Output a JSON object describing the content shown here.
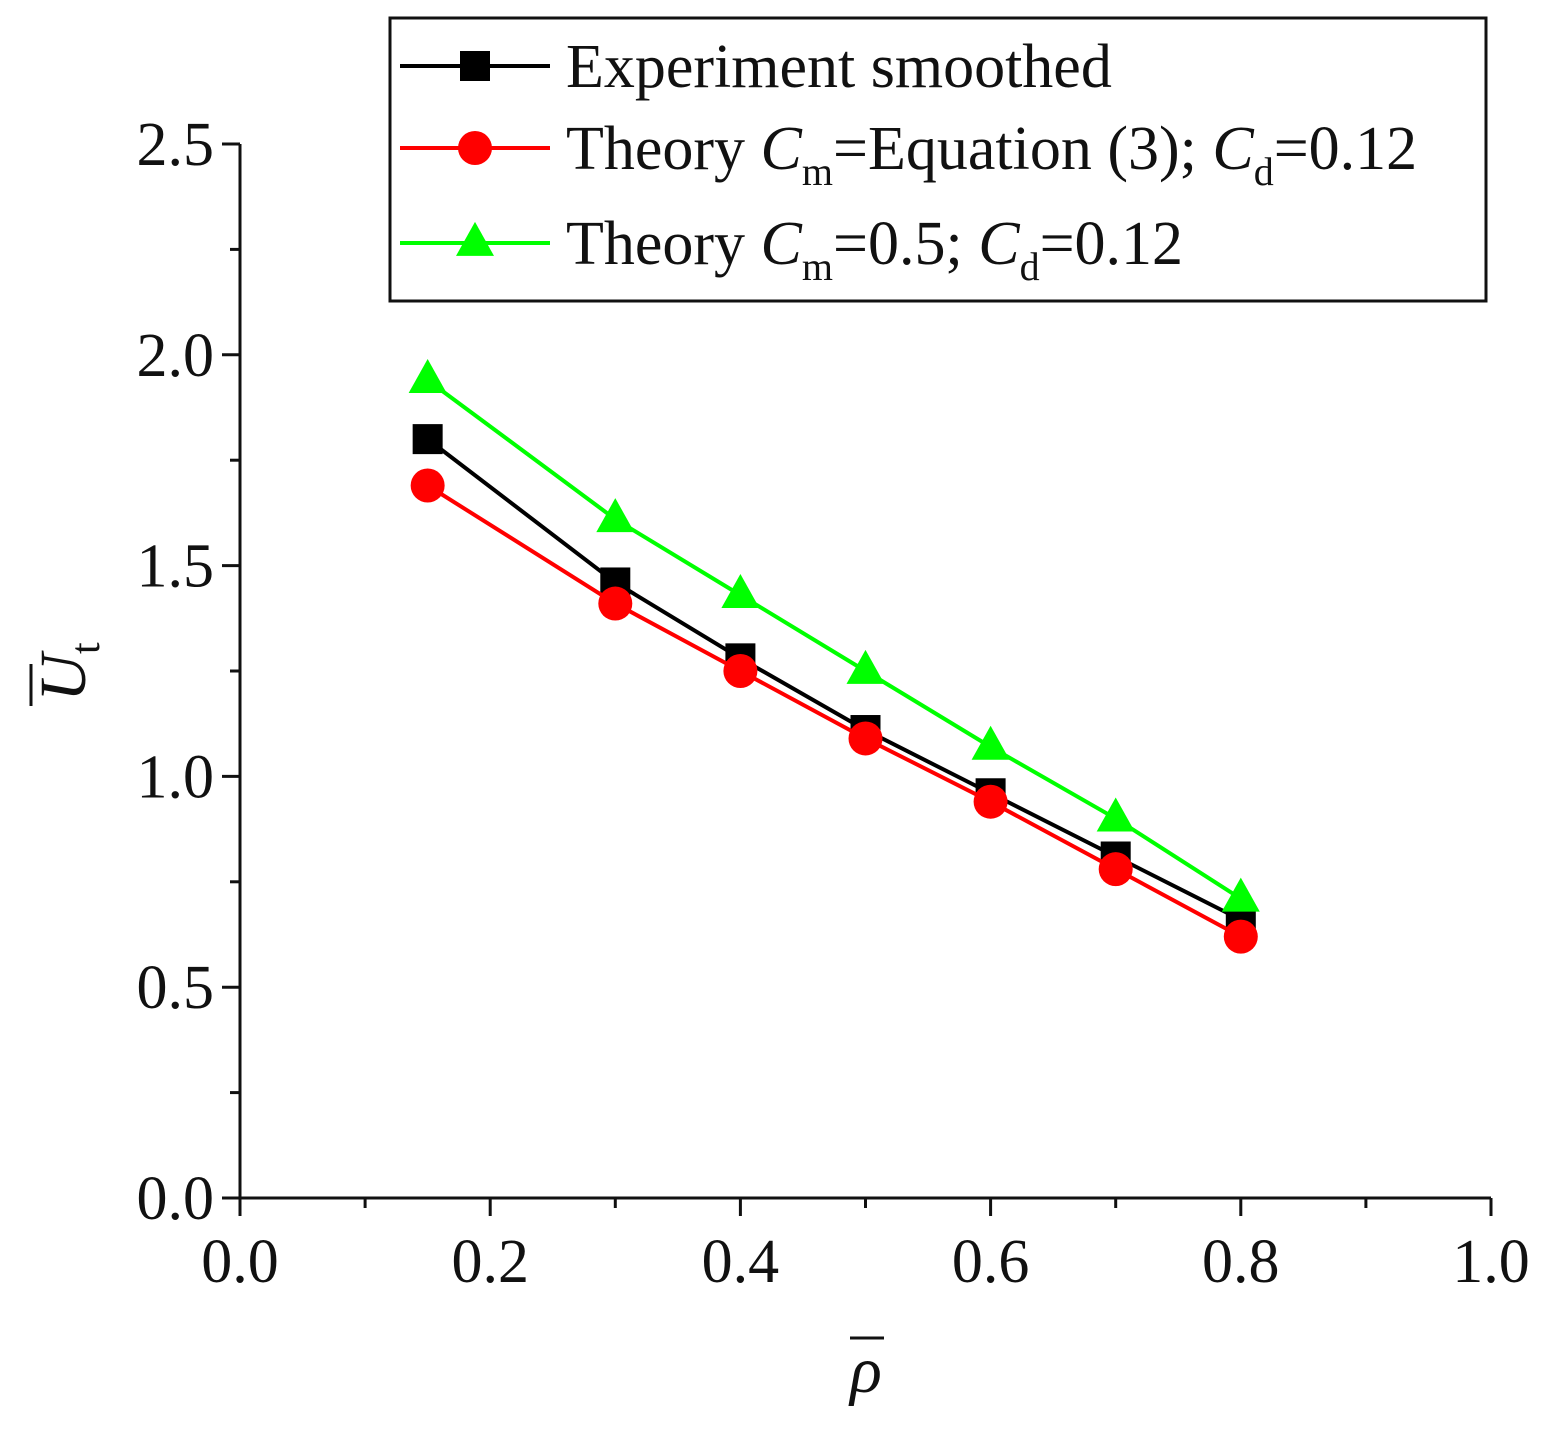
{
  "chart_data": {
    "type": "line",
    "xlabel": "ρ",
    "ylabel_main": "U",
    "ylabel_sub": "t",
    "xlim": [
      0.0,
      1.0
    ],
    "ylim": [
      0.0,
      2.5
    ],
    "x_ticks": [
      "0.0",
      "0.2",
      "0.4",
      "0.6",
      "0.8",
      "1.0"
    ],
    "y_ticks": [
      "0.0",
      "0.5",
      "1.0",
      "1.5",
      "2.0",
      "2.5"
    ],
    "x_tick_values": [
      0.0,
      0.2,
      0.4,
      0.6,
      0.8,
      1.0
    ],
    "y_tick_values": [
      0.0,
      0.5,
      1.0,
      1.5,
      2.0,
      2.5
    ],
    "x_minor_values": [
      0.1,
      0.3,
      0.5,
      0.7,
      0.9
    ],
    "y_minor_values": [
      0.25,
      0.75,
      1.25,
      1.75,
      2.25
    ],
    "legend_position": "top-right",
    "series": [
      {
        "name": "Experiment smoothed",
        "legend": {
          "pre": "Experiment smoothed",
          "var1": "",
          "sub1": "",
          "mid": "",
          "var2": "",
          "sub2": "",
          "post": ""
        },
        "color": "#000000",
        "marker": "square",
        "x": [
          0.15,
          0.3,
          0.4,
          0.5,
          0.6,
          0.7,
          0.8
        ],
        "y": [
          1.8,
          1.46,
          1.28,
          1.11,
          0.96,
          0.81,
          0.66
        ]
      },
      {
        "name": "Theory Cm=Equation (3); Cd=0.12",
        "legend": {
          "pre": "Theory ",
          "var1": "C",
          "sub1": "m",
          "mid": "=Equation (3); ",
          "var2": "C",
          "sub2": "d",
          "post": "=0.12"
        },
        "color": "#ff0000",
        "marker": "circle",
        "x": [
          0.15,
          0.3,
          0.4,
          0.5,
          0.6,
          0.7,
          0.8
        ],
        "y": [
          1.69,
          1.41,
          1.25,
          1.09,
          0.94,
          0.78,
          0.62
        ]
      },
      {
        "name": "Theory Cm=0.5; Cd=0.12",
        "legend": {
          "pre": "Theory ",
          "var1": "C",
          "sub1": "m",
          "mid": "=0.5; ",
          "var2": "C",
          "sub2": "d",
          "post": "=0.12"
        },
        "color": "#00ff00",
        "marker": "triangle",
        "x": [
          0.15,
          0.3,
          0.4,
          0.5,
          0.6,
          0.7,
          0.8
        ],
        "y": [
          1.94,
          1.61,
          1.43,
          1.25,
          1.07,
          0.9,
          0.71
        ]
      }
    ]
  }
}
